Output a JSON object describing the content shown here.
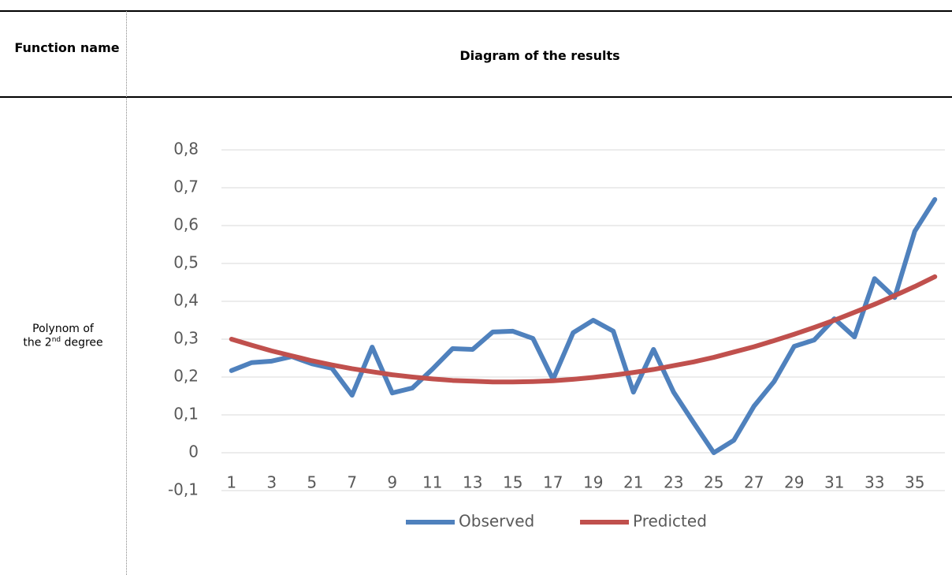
{
  "table": {
    "headers": [
      "Function name",
      "Diagram of the results"
    ],
    "rows": [
      {
        "label": [
          "Polynom of",
          "the 2",
          "nd",
          " degree"
        ]
      }
    ]
  },
  "chart_data": {
    "type": "line",
    "categories": [
      1,
      null,
      3,
      null,
      5,
      null,
      7,
      null,
      9,
      null,
      11,
      null,
      13,
      null,
      15,
      null,
      17,
      null,
      19,
      null,
      21,
      null,
      23,
      null,
      25,
      null,
      27,
      null,
      29,
      null,
      31,
      null,
      33,
      null,
      35,
      null
    ],
    "series": [
      {
        "name": "Observed",
        "color": "#4f81bd",
        "values": [
          0.217,
          0.238,
          0.242,
          0.254,
          0.235,
          0.223,
          0.152,
          0.279,
          0.158,
          0.171,
          0.221,
          0.275,
          0.273,
          0.319,
          0.321,
          0.302,
          0.194,
          0.317,
          0.35,
          0.321,
          0.16,
          0.273,
          0.16,
          0.079,
          0.0,
          0.033,
          0.123,
          0.188,
          0.281,
          0.298,
          0.354,
          0.306,
          0.46,
          0.41,
          0.585,
          0.669
        ]
      },
      {
        "name": "Predicted",
        "color": "#c0504d",
        "values": [
          0.3,
          0.284,
          0.269,
          0.256,
          0.243,
          0.232,
          0.222,
          0.214,
          0.206,
          0.2,
          0.195,
          0.191,
          0.189,
          0.187,
          0.187,
          0.188,
          0.19,
          0.194,
          0.199,
          0.205,
          0.212,
          0.22,
          0.23,
          0.24,
          0.252,
          0.266,
          0.28,
          0.296,
          0.313,
          0.331,
          0.35,
          0.371,
          0.392,
          0.415,
          0.439,
          0.465
        ]
      }
    ],
    "ylim": [
      -0.1,
      0.8
    ],
    "yticks": [
      {
        "value": -0.1,
        "label": "-0,1"
      },
      0,
      {
        "value": 0.1,
        "label": "0,1"
      },
      {
        "value": 0.2,
        "label": "0,2"
      },
      {
        "value": 0.3,
        "label": "0,3"
      },
      {
        "value": 0.4,
        "label": "0,4"
      },
      {
        "value": 0.5,
        "label": "0,5"
      },
      {
        "value": 0.6,
        "label": "0,6"
      },
      {
        "value": 0.7,
        "label": "0,7"
      },
      {
        "value": 0.8,
        "label": "0,8"
      }
    ],
    "grid": true,
    "legend": "bottom"
  }
}
